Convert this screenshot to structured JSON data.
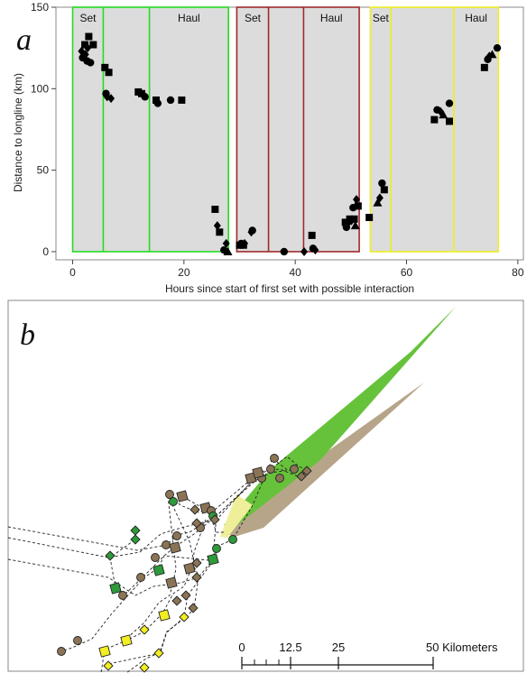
{
  "panel_a_letter": "a",
  "panel_b_letter": "b",
  "chart_data": [
    {
      "type": "scatter",
      "panel": "a",
      "title": "",
      "xlabel": "Hours since start of first set with possible interaction",
      "ylabel": "Distance to longline (km)",
      "xlim": [
        -3,
        81
      ],
      "ylim": [
        -5,
        150
      ],
      "xticks": [
        0,
        20,
        40,
        60,
        80
      ],
      "yticks": [
        0,
        50,
        100,
        150
      ],
      "grid": false,
      "legend": "none",
      "operations": [
        {
          "set_start": 0,
          "boundary": 5.5,
          "haul_start": 13.8,
          "end": 28,
          "color": "#22dd22",
          "set_label": "Set",
          "haul_label": "Haul"
        },
        {
          "set_start": 29.5,
          "boundary": 35.2,
          "haul_start": 41.5,
          "end": 51.5,
          "color": "#a02a2a",
          "set_label": "Set",
          "haul_label": "Haul"
        },
        {
          "set_start": 53.5,
          "boundary": 57.2,
          "haul_start": 68.5,
          "end": 76.5,
          "color": "#eeee22",
          "set_label": "Set",
          "haul_label": "Haul"
        }
      ],
      "series": [
        {
          "marker": "circle",
          "x": [
            1.8,
            2.6,
            3.2,
            6.0,
            13.0,
            15.3,
            17.6,
            27.2,
            30.3,
            32.3,
            38.0,
            43.2,
            49.2,
            50.4,
            55.6,
            65.5,
            67.7,
            74.6,
            76.3
          ],
          "y": [
            119,
            117,
            116,
            97,
            95,
            91,
            93,
            1,
            5,
            13,
            0,
            2,
            15,
            27,
            42,
            87,
            91,
            118,
            125
          ]
        },
        {
          "marker": "square",
          "x": [
            2.2,
            2.9,
            3.7,
            5.8,
            6.5,
            11.8,
            12.4,
            15.0,
            19.6,
            25.6,
            26.4,
            30.0,
            30.7,
            43.0,
            49.0,
            49.8,
            50.6,
            51.3,
            53.3,
            56.0,
            65.0,
            67.7,
            74.0
          ],
          "y": [
            127,
            132,
            127,
            113,
            110,
            98,
            97,
            93,
            93,
            26,
            12,
            4,
            4,
            10,
            18,
            20,
            20,
            28,
            21,
            38,
            81,
            80,
            113
          ]
        },
        {
          "marker": "diamond",
          "x": [
            1.6,
            2.3,
            2.7,
            6.2,
            6.9,
            12.8,
            26.0,
            27.6,
            30.9,
            32.1,
            41.6,
            43.6,
            49.4,
            50.1,
            51.0,
            55.2,
            66.1,
            74.9
          ],
          "y": [
            123,
            121,
            125,
            95,
            94,
            96,
            16,
            5,
            5,
            12,
            0,
            1,
            17,
            19,
            32,
            33,
            86,
            120
          ]
        },
        {
          "marker": "triangle",
          "x": [
            27.9,
            50.8,
            54.8,
            66.6,
            75.4
          ],
          "y": [
            0,
            16,
            30,
            84,
            121
          ]
        }
      ]
    }
  ],
  "panel_b": {
    "scale_bar": {
      "tick_labels": [
        "0",
        "12.5",
        "25",
        "50 Kilometers"
      ]
    },
    "colors": {
      "green": "#2e9a3a",
      "brown": "#8b7456",
      "yellow": "#f2ee22",
      "green_cone": "#66c23a",
      "brown_cone": "#b7a58a",
      "yellow_cone": "#efef99"
    }
  }
}
